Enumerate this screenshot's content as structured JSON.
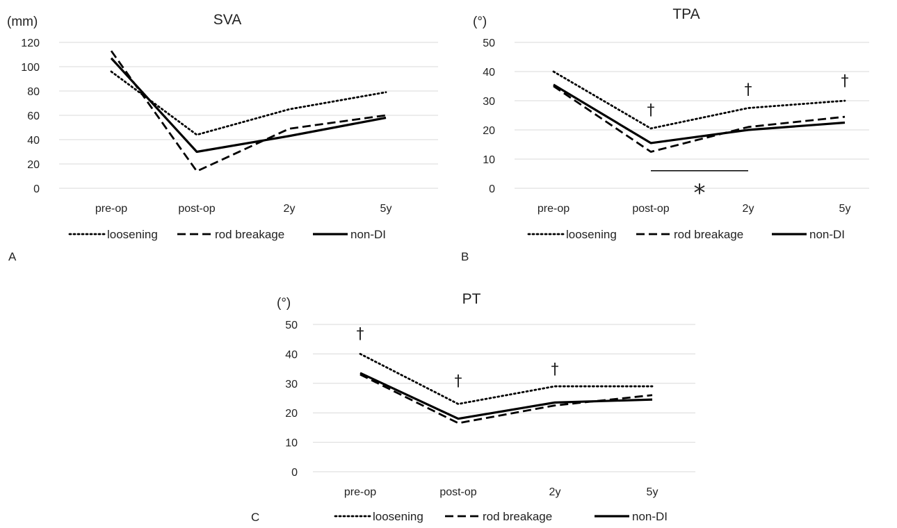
{
  "figure": {
    "panel_labels": [
      "A",
      "B",
      "C"
    ]
  },
  "series_styles": {
    "loosening": {
      "color": "#000000",
      "dash": "dot"
    },
    "rod breakage": {
      "color": "#000000",
      "dash": "dash"
    },
    "non-DI": {
      "color": "#000000",
      "dash": "solid"
    }
  },
  "chart_data": [
    {
      "type": "line",
      "panel": "A",
      "title": "SVA",
      "unit": "(mm)",
      "xlabel": "",
      "ylabel": "",
      "categories": [
        "pre-op",
        "post-op",
        "2y",
        "5y"
      ],
      "ylim": [
        0,
        120
      ],
      "yticks": [
        0,
        20,
        40,
        60,
        80,
        100,
        120
      ],
      "grid": true,
      "legend_position": "bottom",
      "series": [
        {
          "name": "loosening",
          "values": [
            96,
            44,
            65,
            79
          ]
        },
        {
          "name": "rod breakage",
          "values": [
            113,
            14,
            49,
            60
          ]
        },
        {
          "name": "non-DI",
          "values": [
            107,
            30,
            43,
            58
          ]
        }
      ],
      "annotations": []
    },
    {
      "type": "line",
      "panel": "B",
      "title": "TPA",
      "unit": "(°)",
      "xlabel": "",
      "ylabel": "",
      "categories": [
        "pre-op",
        "post-op",
        "2y",
        "5y"
      ],
      "ylim": [
        0,
        50
      ],
      "yticks": [
        0,
        10,
        20,
        30,
        40,
        50
      ],
      "grid": true,
      "legend_position": "bottom",
      "series": [
        {
          "name": "loosening",
          "values": [
            40,
            20.5,
            27.5,
            30
          ]
        },
        {
          "name": "rod breakage",
          "values": [
            35,
            12.5,
            21,
            24.5
          ]
        },
        {
          "name": "non-DI",
          "values": [
            35.5,
            15.5,
            20,
            22.5
          ]
        }
      ],
      "annotations": [
        {
          "text": "†",
          "category": "post-op",
          "value": 27
        },
        {
          "text": "†",
          "category": "2y",
          "value": 34
        },
        {
          "text": "†",
          "category": "5y",
          "value": 37
        },
        {
          "text": "*",
          "category": "post-op to 2y",
          "value": -1
        }
      ],
      "significance_bar": {
        "from": "post-op",
        "to": "2y",
        "value": 6
      }
    },
    {
      "type": "line",
      "panel": "C",
      "title": "PT",
      "unit": "(°)",
      "xlabel": "",
      "ylabel": "",
      "categories": [
        "pre-op",
        "post-op",
        "2y",
        "5y"
      ],
      "ylim": [
        0,
        50
      ],
      "yticks": [
        0,
        10,
        20,
        30,
        40,
        50
      ],
      "grid": true,
      "legend_position": "bottom",
      "series": [
        {
          "name": "loosening",
          "values": [
            40,
            23,
            29,
            29
          ]
        },
        {
          "name": "rod breakage",
          "values": [
            33,
            16.5,
            22.5,
            26
          ]
        },
        {
          "name": "non-DI",
          "values": [
            33.5,
            18,
            23.5,
            24.5
          ]
        }
      ],
      "annotations": [
        {
          "text": "†",
          "category": "pre-op",
          "value": 47
        },
        {
          "text": "†",
          "category": "post-op",
          "value": 31
        },
        {
          "text": "†",
          "category": "2y",
          "value": 35
        }
      ]
    }
  ]
}
